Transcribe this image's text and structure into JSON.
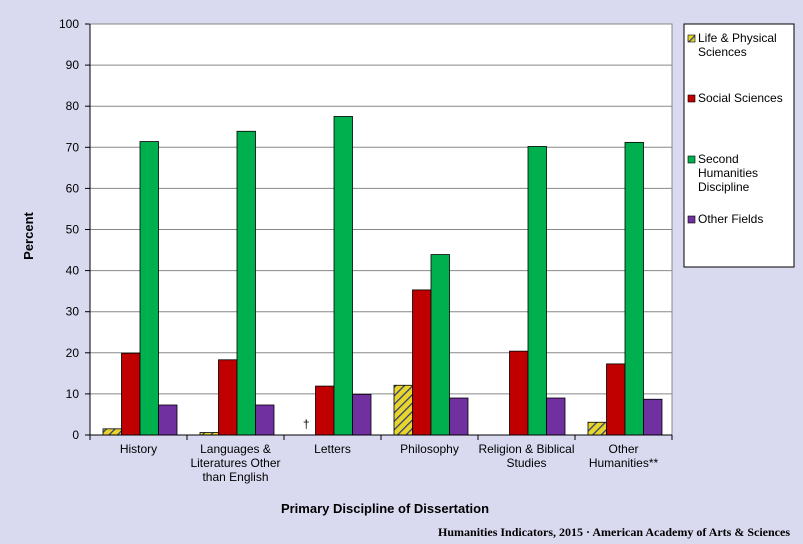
{
  "chart_data": {
    "type": "bar",
    "xlabel": "Primary Discipline of Dissertation",
    "ylabel": "Percent",
    "ylim": [
      0,
      100
    ],
    "yticks": [
      0,
      10,
      20,
      30,
      40,
      50,
      60,
      70,
      80,
      90,
      100
    ],
    "grid": "horizontal",
    "legend_position": "right",
    "categories": [
      [
        "History"
      ],
      [
        "Languages &",
        "Literatures Other",
        "than English"
      ],
      [
        "Letters"
      ],
      [
        "Philosophy"
      ],
      [
        "Religion & Biblical",
        "Studies"
      ],
      [
        "Other",
        "Humanities**"
      ]
    ],
    "series": [
      {
        "name": [
          "Life & Physical",
          "Sciences"
        ],
        "color": "#d4c025",
        "pattern": "hatched",
        "values": [
          1.5,
          0.6,
          null,
          12.1,
          0,
          3.1
        ]
      },
      {
        "name": [
          "Social Sciences"
        ],
        "color": "#c00000",
        "values": [
          19.9,
          18.3,
          11.9,
          35.3,
          20.4,
          17.3
        ]
      },
      {
        "name": [
          "Second",
          "Humanities",
          "Discipline"
        ],
        "color": "#00b04f",
        "values": [
          71.4,
          73.9,
          77.5,
          43.9,
          70.2,
          71.2
        ]
      },
      {
        "name": [
          "Other Fields"
        ],
        "color": "#7030a0",
        "values": [
          7.3,
          7.3,
          9.9,
          9.0,
          9.0,
          8.7
        ]
      }
    ],
    "annotations": [
      {
        "text": "†",
        "category_index": 2,
        "series_index": 0
      }
    ]
  },
  "source": "Humanities Indicators, 2015 · American Academy of Arts & Sciences"
}
